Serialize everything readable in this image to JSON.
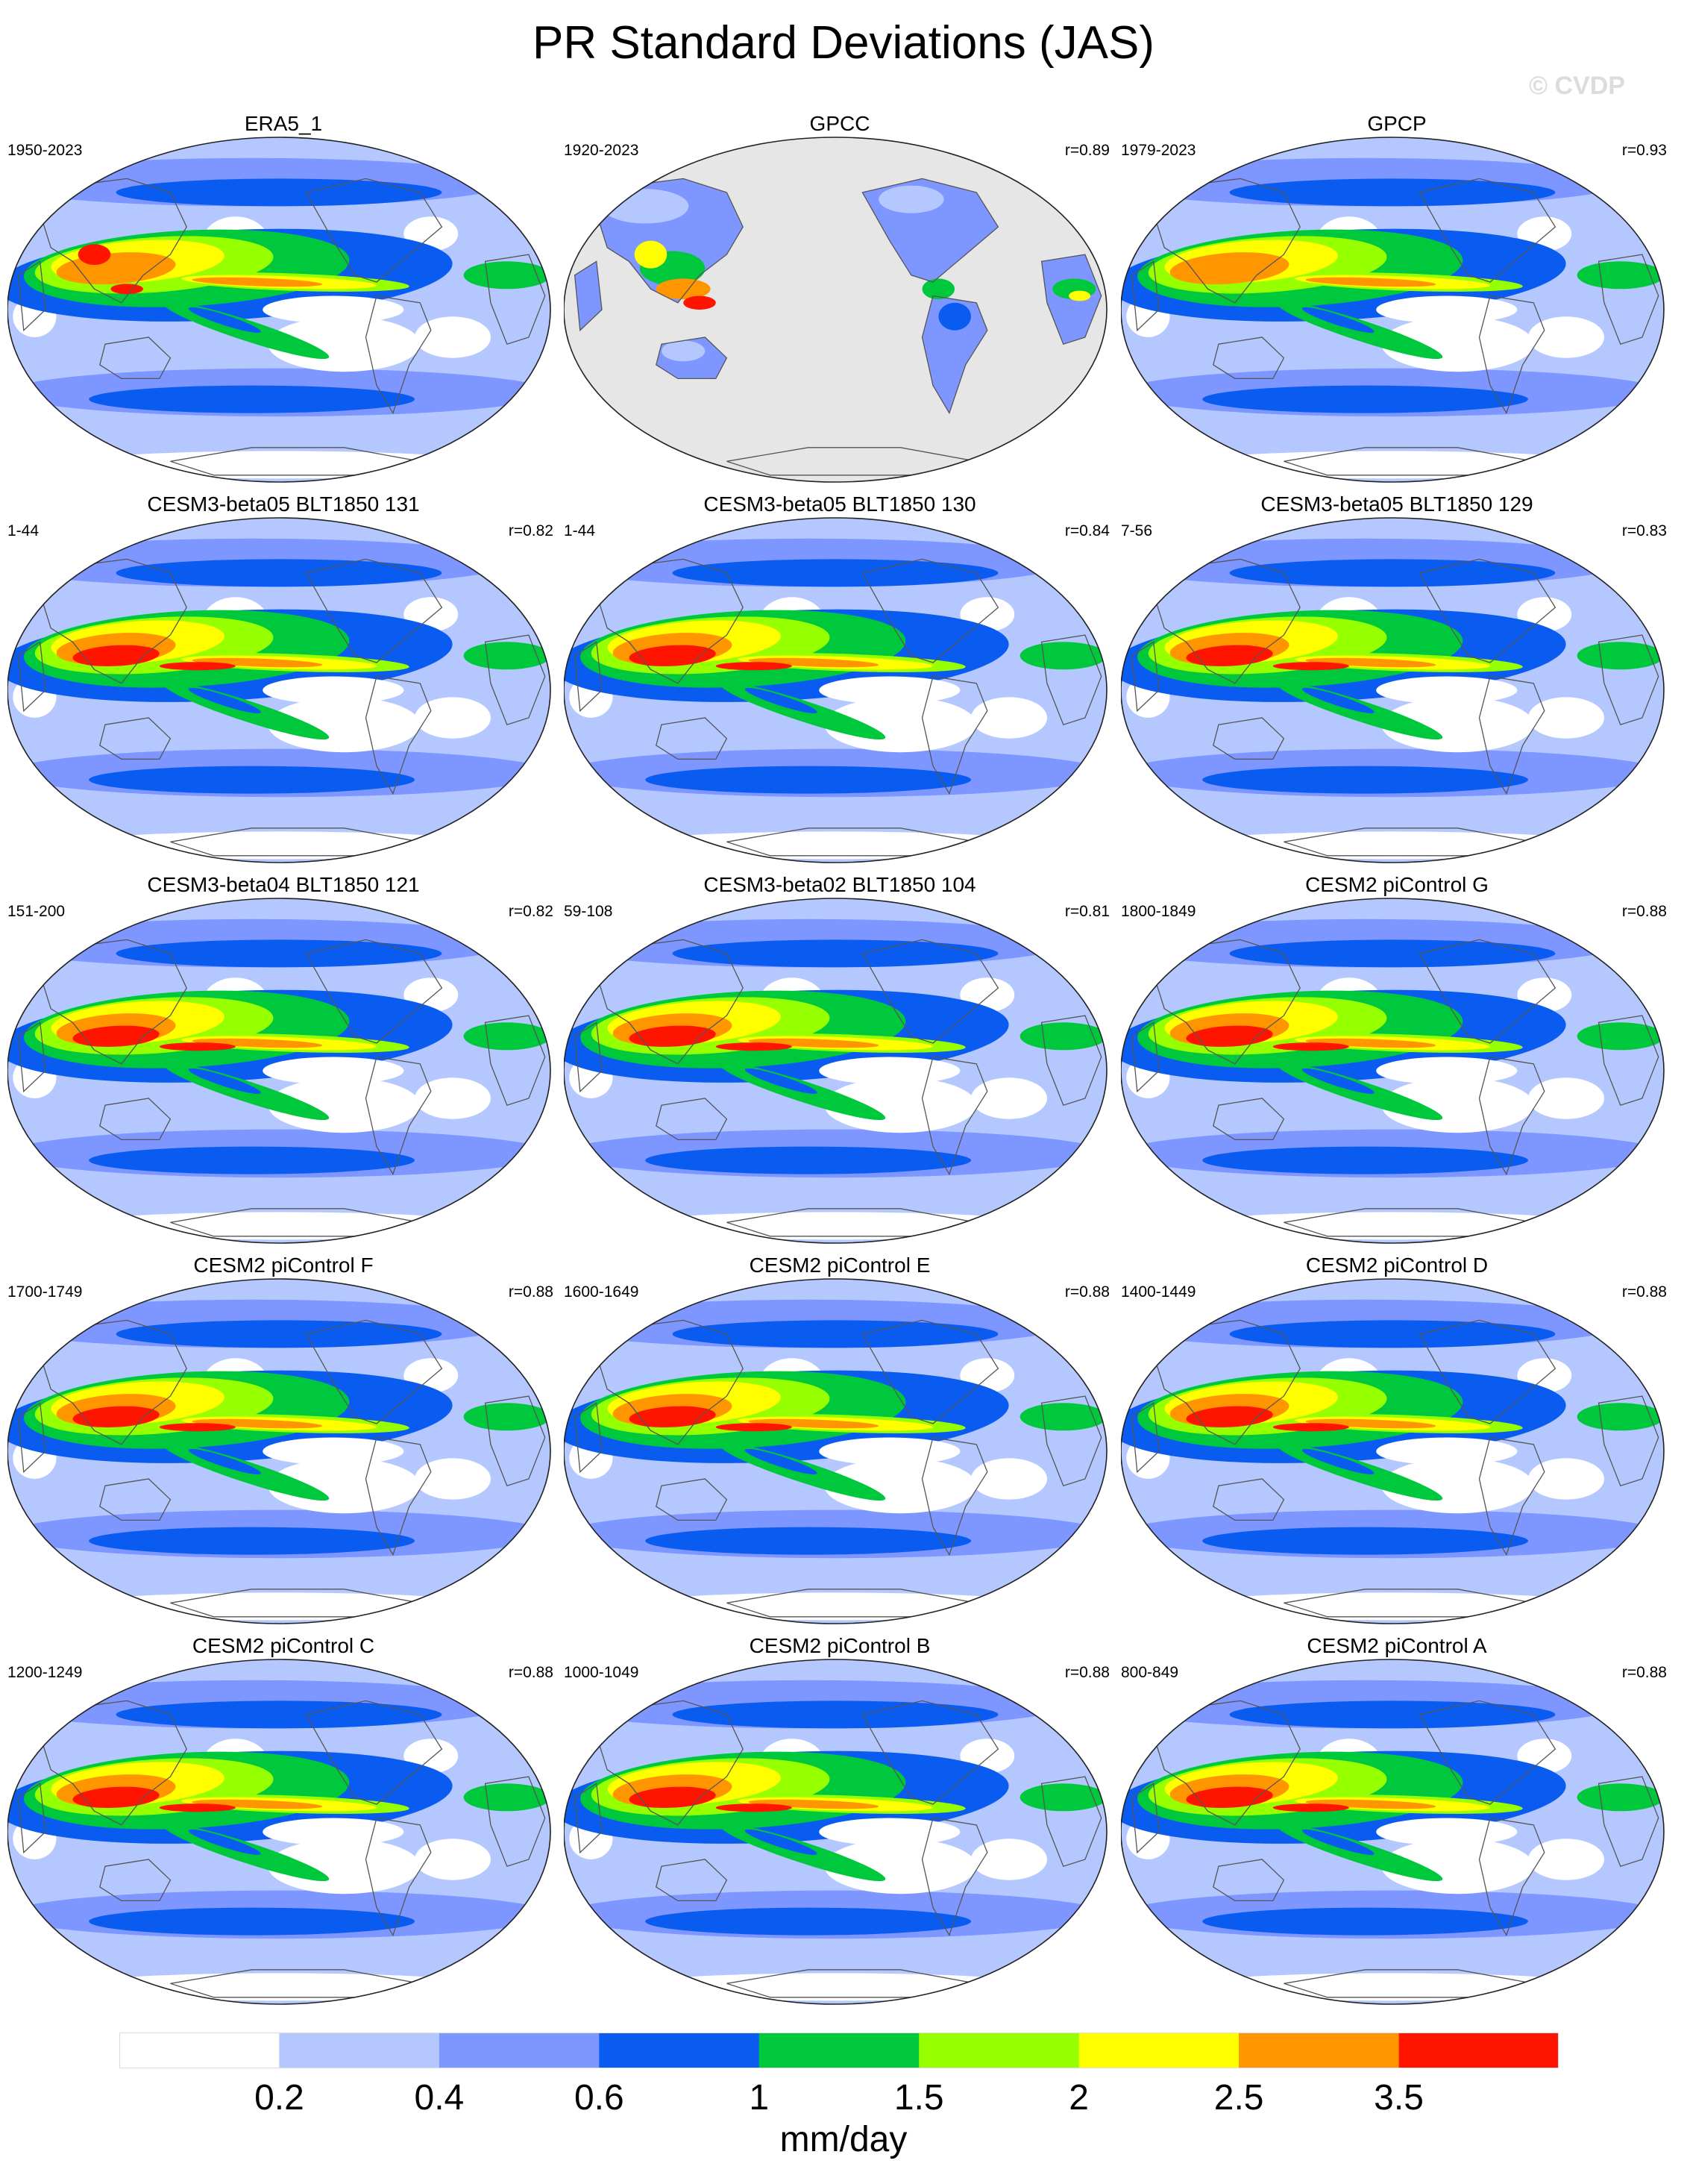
{
  "title": "PR Standard Deviations (JAS)",
  "watermark": "© CVDP",
  "panels": [
    {
      "title": "ERA5_1",
      "period": "1950-2023",
      "r": "",
      "pattern": "era"
    },
    {
      "title": "GPCC",
      "period": "1920-2023",
      "r": "r=0.89",
      "pattern": "gpcc"
    },
    {
      "title": "GPCP",
      "period": "1979-2023",
      "r": "r=0.93",
      "pattern": "obs"
    },
    {
      "title": "CESM3-beta05 BLT1850 131",
      "period": "1-44",
      "r": "r=0.82",
      "pattern": "model"
    },
    {
      "title": "CESM3-beta05 BLT1850 130",
      "period": "1-44",
      "r": "r=0.84",
      "pattern": "model"
    },
    {
      "title": "CESM3-beta05 BLT1850 129",
      "period": "7-56",
      "r": "r=0.83",
      "pattern": "model"
    },
    {
      "title": "CESM3-beta04 BLT1850 121",
      "period": "151-200",
      "r": "r=0.82",
      "pattern": "model"
    },
    {
      "title": "CESM3-beta02 BLT1850 104",
      "period": "59-108",
      "r": "r=0.81",
      "pattern": "model"
    },
    {
      "title": "CESM2 piControl G",
      "period": "1800-1849",
      "r": "r=0.88",
      "pattern": "model"
    },
    {
      "title": "CESM2 piControl F",
      "period": "1700-1749",
      "r": "r=0.88",
      "pattern": "model"
    },
    {
      "title": "CESM2 piControl E",
      "period": "1600-1649",
      "r": "r=0.88",
      "pattern": "model"
    },
    {
      "title": "CESM2 piControl D",
      "period": "1400-1449",
      "r": "r=0.88",
      "pattern": "model"
    },
    {
      "title": "CESM2 piControl C",
      "period": "1200-1249",
      "r": "r=0.88",
      "pattern": "model"
    },
    {
      "title": "CESM2 piControl B",
      "period": "1000-1049",
      "r": "r=0.88",
      "pattern": "model"
    },
    {
      "title": "CESM2 piControl A",
      "period": "800-849",
      "r": "r=0.88",
      "pattern": "model"
    }
  ],
  "colorbar": {
    "units": "mm/day",
    "labels": [
      "0.2",
      "0.4",
      "0.6",
      "1",
      "1.5",
      "2",
      "2.5",
      "3.5"
    ],
    "colors": [
      "#ffffff",
      "#b4c8ff",
      "#7e96ff",
      "#0a5cf0",
      "#00c83c",
      "#96ff00",
      "#ffff00",
      "#ff9600",
      "#ff1400"
    ]
  },
  "map_colors": {
    "land_missing": "#e6e6e6",
    "coast": "#555555",
    "frame": "#222222"
  }
}
